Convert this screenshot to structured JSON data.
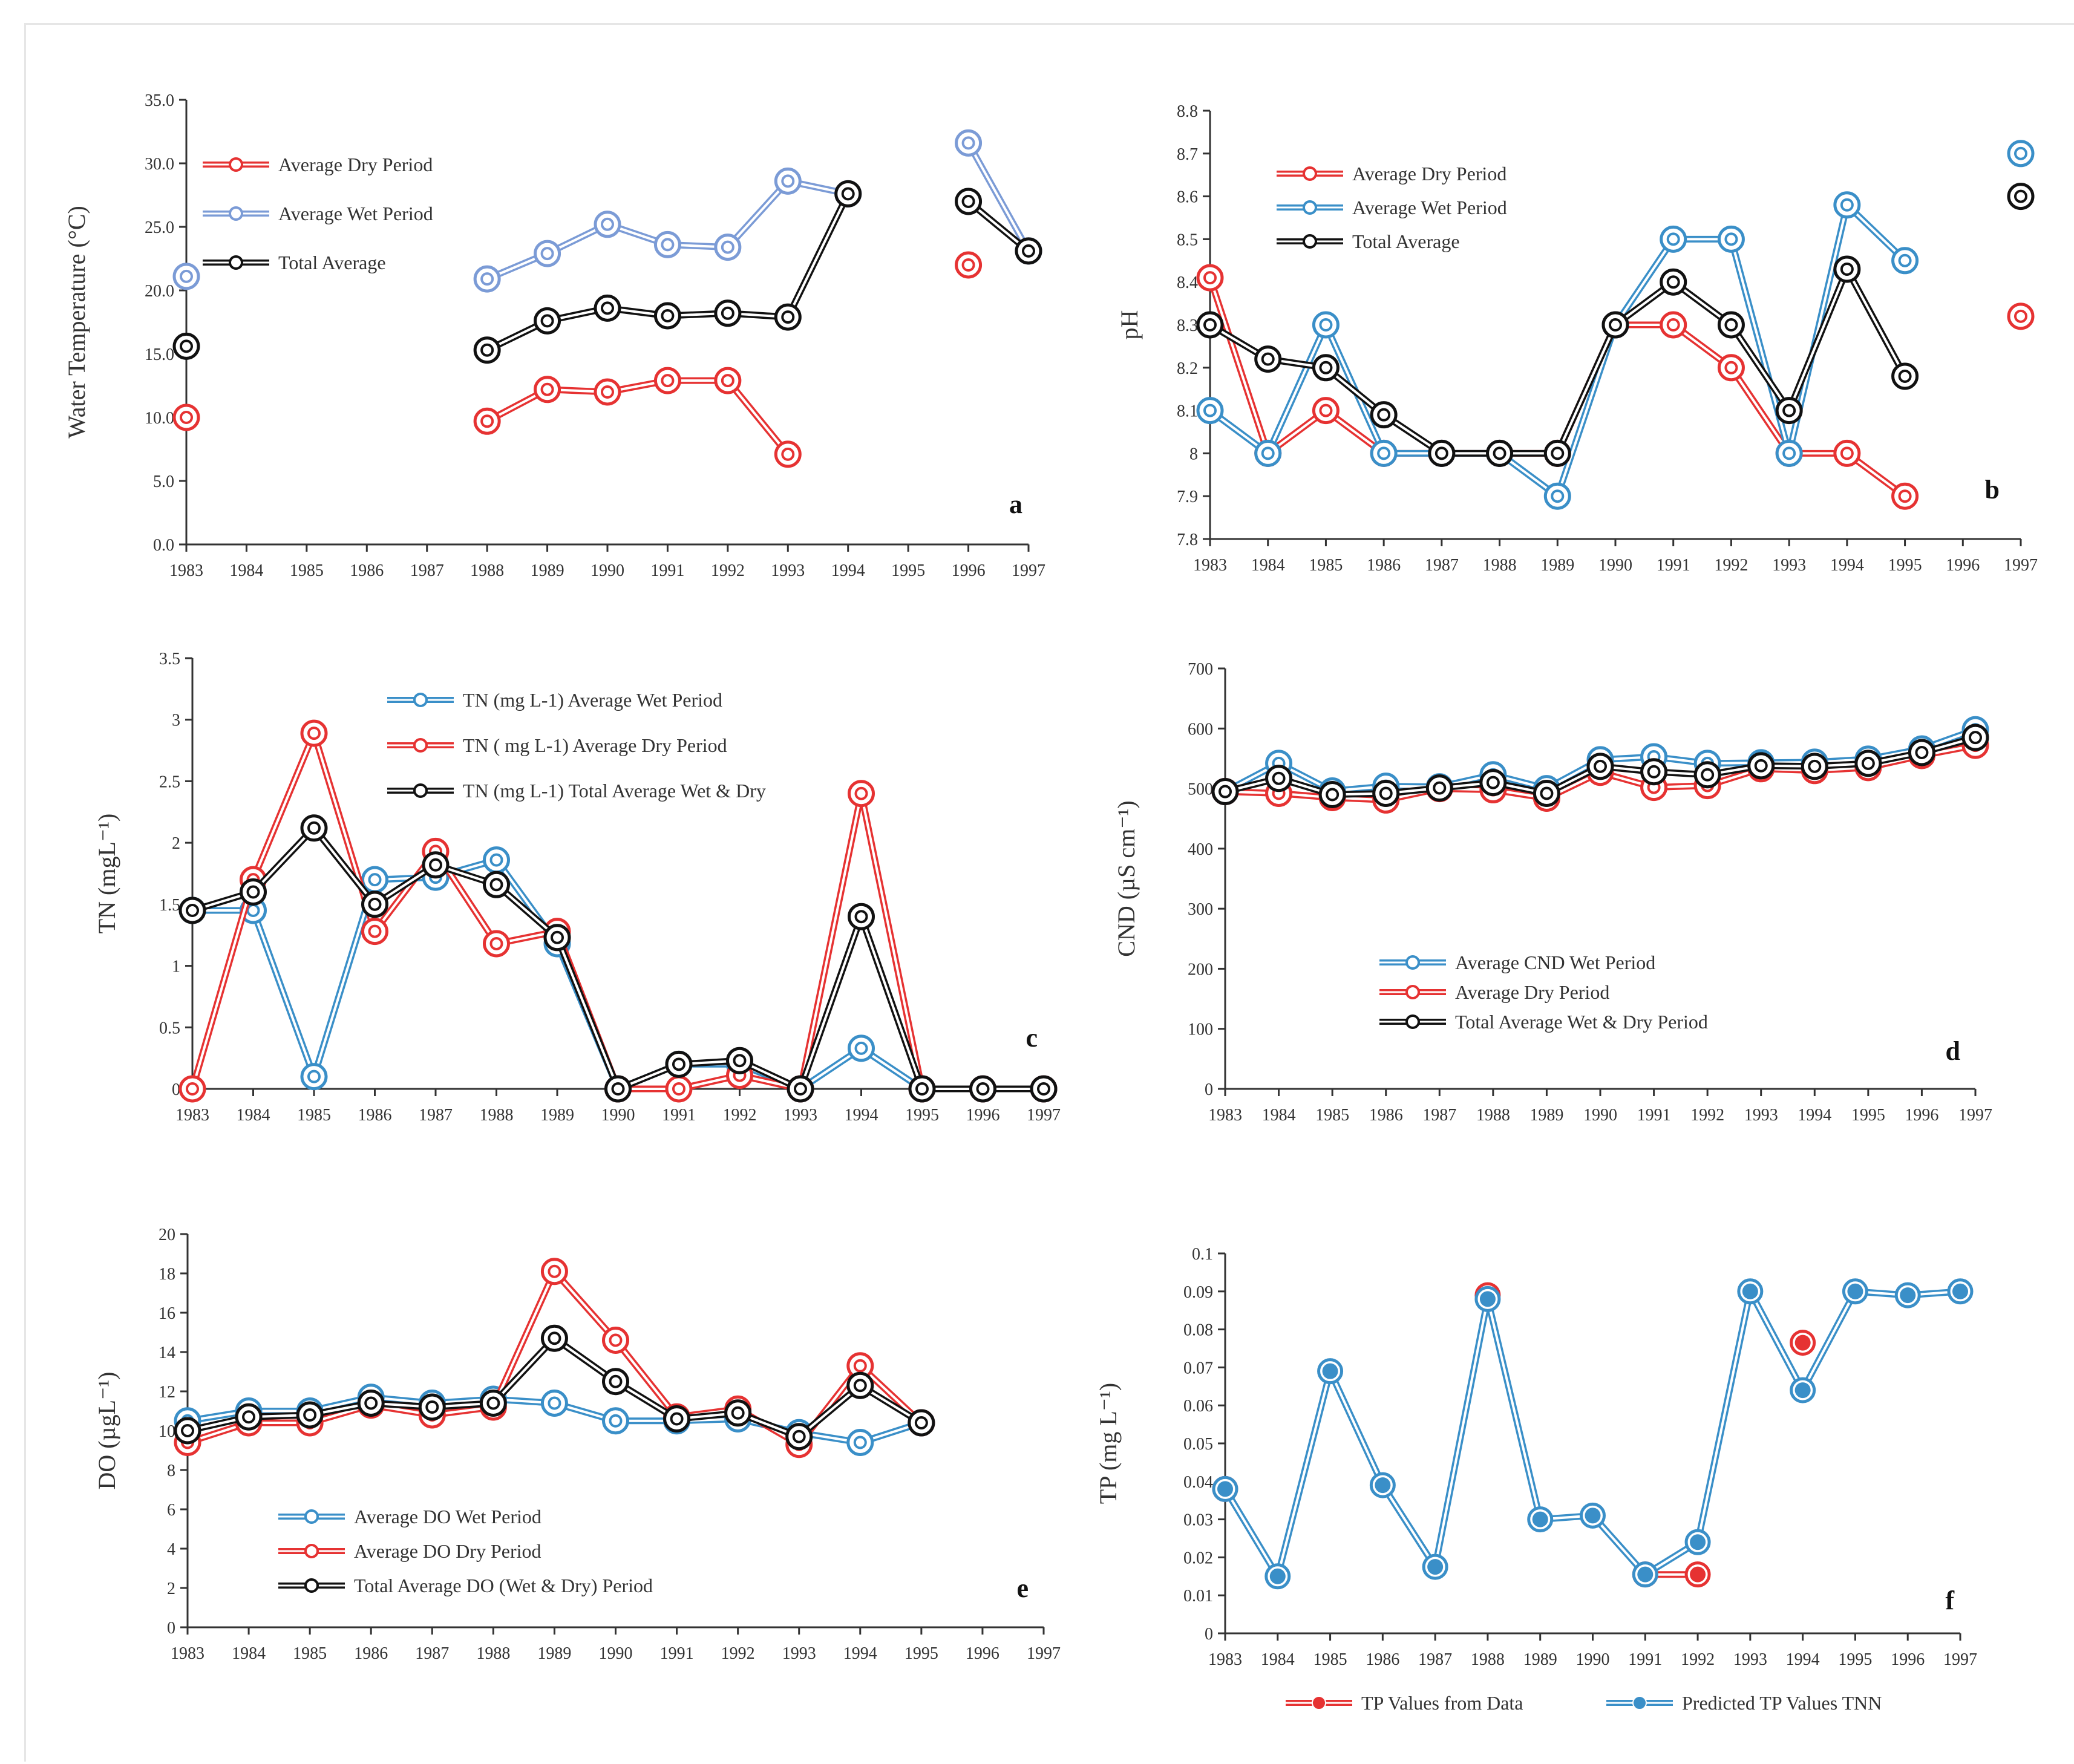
{
  "colors": {
    "red": "#e63232",
    "blue": "#3a8fc8",
    "lightblue": "#7b9bd6",
    "black": "#111111"
  },
  "chart_data": [
    {
      "id": "a",
      "type": "line",
      "panel_label": "a",
      "ylabel": "Water Temperature (°C)",
      "xlabel": "",
      "ylim": [
        0,
        35
      ],
      "y_ticks": [
        "0.0",
        "5.0",
        "10.0",
        "15.0",
        "20.0",
        "25.0",
        "30.0",
        "35.0"
      ],
      "categories": [
        "1983",
        "1984",
        "1985",
        "1986",
        "1987",
        "1988",
        "1989",
        "1990",
        "1991",
        "1992",
        "1993",
        "1994",
        "1995",
        "1996",
        "1997"
      ],
      "legend_position": "top-left",
      "series": [
        {
          "name": "Average Dry Period",
          "color": "#e63232",
          "values": [
            10.0,
            null,
            null,
            null,
            null,
            9.7,
            12.2,
            12.0,
            12.9,
            12.9,
            7.1,
            null,
            null,
            22.0,
            null
          ]
        },
        {
          "name": "Average Wet Period",
          "color": "#7b9bd6",
          "values": [
            21.1,
            null,
            null,
            null,
            null,
            20.9,
            22.9,
            25.2,
            23.6,
            23.4,
            28.6,
            27.6,
            null,
            31.6,
            23.1
          ]
        },
        {
          "name": "Total Average",
          "color": "#111111",
          "values": [
            15.6,
            null,
            null,
            null,
            null,
            15.3,
            17.6,
            18.6,
            18.0,
            18.2,
            17.9,
            27.6,
            null,
            27.0,
            23.1
          ]
        }
      ]
    },
    {
      "id": "b",
      "type": "line",
      "panel_label": "b",
      "ylabel": "pH",
      "xlabel": "",
      "ylim": [
        7.8,
        8.8
      ],
      "y_ticks": [
        "7.8",
        "7.9",
        "8",
        "8.1",
        "8.2",
        "8.3",
        "8.4",
        "8.5",
        "8.6",
        "8.7",
        "8.8"
      ],
      "categories": [
        "1983",
        "1984",
        "1985",
        "1986",
        "1987",
        "1988",
        "1989",
        "1990",
        "1991",
        "1992",
        "1993",
        "1994",
        "1995",
        "1996",
        "1997"
      ],
      "legend_position": "top-left",
      "series": [
        {
          "name": "Average Dry Period",
          "color": "#e63232",
          "values": [
            8.41,
            8.0,
            8.1,
            8.0,
            8.0,
            8.0,
            8.0,
            8.3,
            8.3,
            8.2,
            8.0,
            8.0,
            7.9,
            null,
            8.32
          ]
        },
        {
          "name": "Average Wet Period",
          "color": "#3a8fc8",
          "values": [
            8.1,
            8.0,
            8.3,
            8.0,
            8.0,
            8.0,
            7.9,
            8.3,
            8.5,
            8.5,
            8.0,
            8.58,
            8.45,
            null,
            8.7
          ]
        },
        {
          "name": "Total Average",
          "color": "#111111",
          "values": [
            8.3,
            8.22,
            8.2,
            8.09,
            8.0,
            8.0,
            8.0,
            8.3,
            8.4,
            8.3,
            8.1,
            8.43,
            8.18,
            null,
            8.6
          ]
        }
      ]
    },
    {
      "id": "c",
      "type": "line",
      "panel_label": "c",
      "ylabel": "TN (mgL⁻¹)",
      "xlabel": "",
      "ylim": [
        0,
        3.5
      ],
      "y_ticks": [
        "0",
        "0.5",
        "1",
        "1.5",
        "2",
        "2.5",
        "3",
        "3.5"
      ],
      "categories": [
        "1983",
        "1984",
        "1985",
        "1986",
        "1987",
        "1988",
        "1989",
        "1990",
        "1991",
        "1992",
        "1993",
        "1994",
        "1995",
        "1996",
        "1997"
      ],
      "legend_position": "top",
      "series": [
        {
          "name": "TN (mg L-1) Average Wet Period",
          "color": "#3a8fc8",
          "values": [
            1.45,
            1.45,
            0.1,
            1.7,
            1.72,
            1.86,
            1.18,
            0.0,
            0.2,
            0.2,
            0.0,
            0.33,
            0.0,
            0.0,
            0.0
          ]
        },
        {
          "name": "TN ( mg L-1) Average Dry Period",
          "color": "#e63232",
          "values": [
            0.0,
            1.7,
            2.89,
            1.28,
            1.93,
            1.18,
            1.28,
            0.0,
            0.0,
            0.11,
            0.0,
            2.4,
            0.0,
            0.0,
            0.0
          ]
        },
        {
          "name": "TN (mg L-1) Total Average Wet & Dry",
          "color": "#111111",
          "values": [
            1.45,
            1.6,
            2.12,
            1.5,
            1.82,
            1.66,
            1.23,
            0.0,
            0.2,
            0.23,
            0.0,
            1.4,
            0.0,
            0.0,
            0.0
          ]
        }
      ]
    },
    {
      "id": "d",
      "type": "line",
      "panel_label": "d",
      "ylabel": "CND (µS cm⁻¹)",
      "xlabel": "",
      "ylim": [
        0,
        700
      ],
      "y_ticks": [
        "0",
        "100",
        "200",
        "300",
        "400",
        "500",
        "600",
        "700"
      ],
      "categories": [
        "1983",
        "1984",
        "1985",
        "1986",
        "1987",
        "1988",
        "1989",
        "1990",
        "1991",
        "1992",
        "1993",
        "1994",
        "1995",
        "1996",
        "1997"
      ],
      "legend_position": "center",
      "series": [
        {
          "name": "Average CND Wet Period",
          "color": "#3a8fc8",
          "values": [
            495,
            542,
            496,
            504,
            503,
            523,
            500,
            548,
            553,
            542,
            543,
            544,
            549,
            566,
            598
          ]
        },
        {
          "name": "Average Dry Period",
          "color": "#e63232",
          "values": [
            495,
            492,
            485,
            481,
            500,
            498,
            484,
            527,
            502,
            505,
            533,
            530,
            535,
            555,
            572
          ]
        },
        {
          "name": "Total Average Wet & Dry Period",
          "color": "#111111",
          "values": [
            495,
            517,
            490,
            492,
            501,
            510,
            492,
            537,
            528,
            523,
            538,
            537,
            542,
            560,
            585
          ]
        }
      ]
    },
    {
      "id": "e",
      "type": "line",
      "panel_label": "e",
      "ylabel": "DO (µgL⁻¹)",
      "xlabel": "",
      "ylim": [
        0,
        20
      ],
      "y_ticks": [
        "0",
        "2",
        "4",
        "6",
        "8",
        "10",
        "12",
        "14",
        "16",
        "18",
        "20"
      ],
      "categories": [
        "1983",
        "1984",
        "1985",
        "1986",
        "1987",
        "1988",
        "1989",
        "1990",
        "1991",
        "1992",
        "1993",
        "1994",
        "1995",
        "1996",
        "1997"
      ],
      "legend_position": "bottom-left",
      "series": [
        {
          "name": "Average DO Wet Period",
          "color": "#3a8fc8",
          "values": [
            10.5,
            11.0,
            11.0,
            11.7,
            11.4,
            11.6,
            11.4,
            10.5,
            10.5,
            10.6,
            9.9,
            9.4,
            10.4,
            null,
            null
          ]
        },
        {
          "name": "Average DO Dry Period",
          "color": "#e63232",
          "values": [
            9.4,
            10.4,
            10.4,
            11.3,
            10.8,
            11.2,
            18.1,
            14.6,
            10.7,
            11.1,
            9.3,
            13.3,
            10.4,
            null,
            null
          ]
        },
        {
          "name": "Total Average DO (Wet & Dry) Period",
          "color": "#111111",
          "values": [
            10.0,
            10.7,
            10.8,
            11.4,
            11.2,
            11.4,
            14.7,
            12.5,
            10.6,
            10.9,
            9.7,
            12.3,
            10.4,
            null,
            null
          ]
        }
      ]
    },
    {
      "id": "f",
      "type": "line",
      "panel_label": "f",
      "ylabel": "TP (mg L⁻¹)",
      "xlabel": "",
      "ylim": [
        0,
        0.1
      ],
      "y_ticks": [
        "0",
        "0.01",
        "0.02",
        "0.03",
        "0.04",
        "0.05",
        "0.06",
        "0.07",
        "0.08",
        "0.09",
        "0.1"
      ],
      "categories": [
        "1983",
        "1984",
        "1985",
        "1986",
        "1987",
        "1988",
        "1989",
        "1990",
        "1991",
        "1992",
        "1993",
        "1994",
        "1995",
        "1996",
        "1997"
      ],
      "legend_position": "bottom",
      "series": [
        {
          "name": "TP Values from Data",
          "color": "#e63232",
          "marker": "filled",
          "values": [
            0.038,
            null,
            null,
            null,
            null,
            0.089,
            null,
            null,
            0.0155,
            0.0155,
            null,
            0.0765,
            null,
            null,
            null
          ]
        },
        {
          "name": "Predicted TP Values TNN",
          "color": "#3a8fc8",
          "marker": "filled",
          "values": [
            0.038,
            0.015,
            0.069,
            0.039,
            0.0175,
            0.088,
            0.03,
            0.031,
            0.0155,
            0.024,
            0.09,
            0.064,
            0.09,
            0.089,
            0.09
          ]
        }
      ]
    }
  ]
}
